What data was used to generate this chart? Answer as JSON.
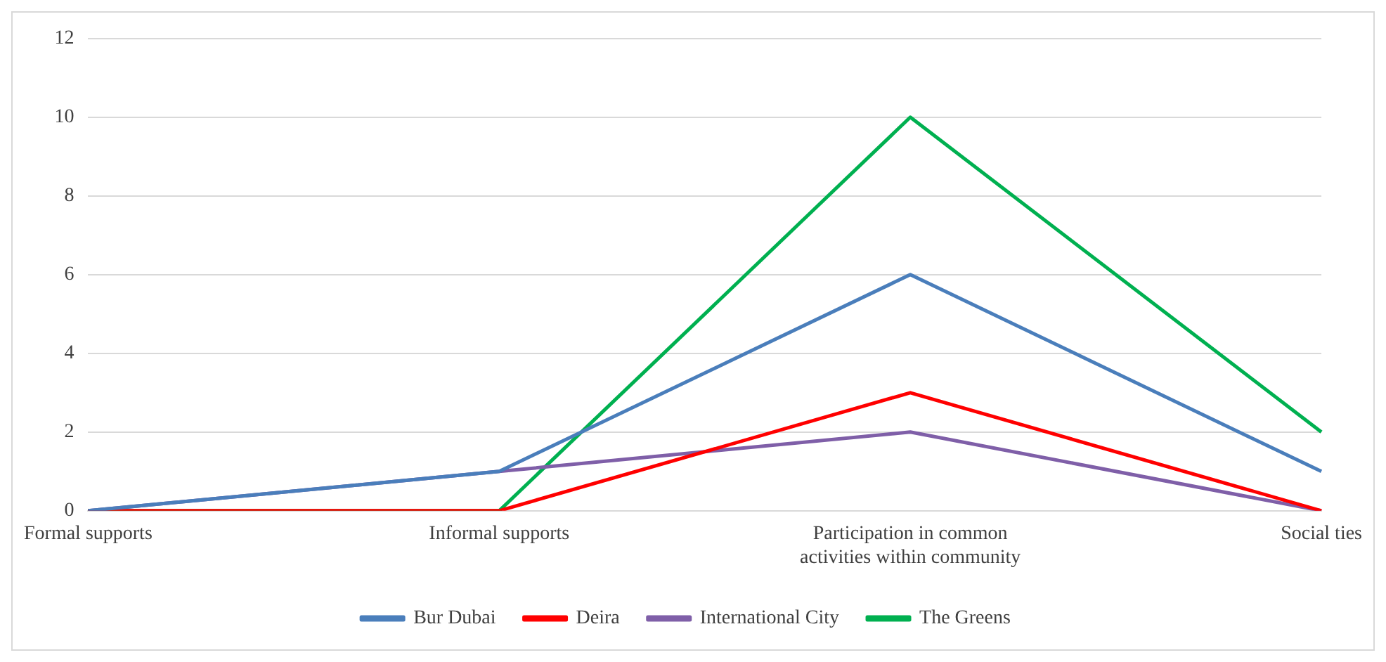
{
  "chart_data": {
    "type": "line",
    "categories": [
      "Formal supports",
      "Informal supports",
      "Participation in common activities within community",
      "Social ties"
    ],
    "series": [
      {
        "name": "Bur Dubai",
        "color": "#4a7ebb",
        "values": [
          0,
          1,
          6,
          1
        ]
      },
      {
        "name": "Deira",
        "color": "#ff0000",
        "values": [
          0,
          0,
          3,
          0
        ]
      },
      {
        "name": "International City",
        "color": "#7f5fa8",
        "values": [
          0,
          1,
          2,
          0
        ]
      },
      {
        "name": "The Greens",
        "color": "#00b050",
        "values": [
          0,
          0,
          10,
          2
        ]
      }
    ],
    "ylim": [
      0,
      12
    ],
    "yticks": [
      0,
      2,
      4,
      6,
      8,
      10,
      12
    ],
    "grid": "y",
    "legend": "bottom",
    "marker": "none",
    "line_style": "solid"
  }
}
